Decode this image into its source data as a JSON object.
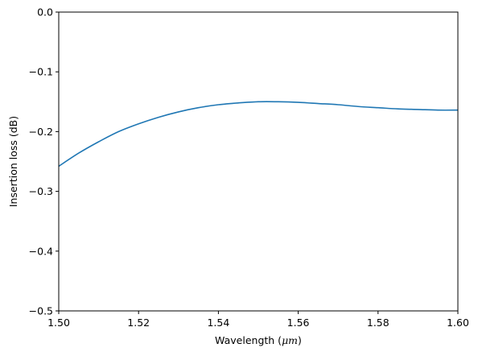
{
  "chart_data": {
    "type": "line",
    "title": "",
    "xlabel_prefix": "Wavelength (",
    "xlabel_unit": "μm",
    "xlabel_suffix": ")",
    "ylabel": "Insertion loss (dB)",
    "xlim": [
      1.5,
      1.6
    ],
    "ylim": [
      -0.5,
      0.0
    ],
    "xticks": [
      1.5,
      1.52,
      1.54,
      1.56,
      1.58,
      1.6
    ],
    "xtick_labels": [
      "1.50",
      "1.52",
      "1.54",
      "1.56",
      "1.58",
      "1.60"
    ],
    "yticks": [
      0.0,
      -0.1,
      -0.2,
      -0.3,
      -0.4,
      -0.5
    ],
    "ytick_labels": [
      "0.0",
      "−0.1",
      "−0.2",
      "−0.3",
      "−0.4",
      "−0.5"
    ],
    "grid": false,
    "series": [
      {
        "color": "#1f77b4",
        "x": [
          1.5,
          1.505,
          1.51,
          1.515,
          1.52,
          1.525,
          1.53,
          1.535,
          1.54,
          1.545,
          1.55,
          1.555,
          1.56,
          1.565,
          1.57,
          1.575,
          1.58,
          1.585,
          1.59,
          1.595,
          1.6
        ],
        "y": [
          -0.258,
          -0.236,
          -0.217,
          -0.2,
          -0.187,
          -0.176,
          -0.167,
          -0.16,
          -0.155,
          -0.152,
          -0.15,
          -0.15,
          -0.151,
          -0.153,
          -0.155,
          -0.158,
          -0.16,
          -0.162,
          -0.163,
          -0.164,
          -0.164
        ]
      }
    ]
  }
}
